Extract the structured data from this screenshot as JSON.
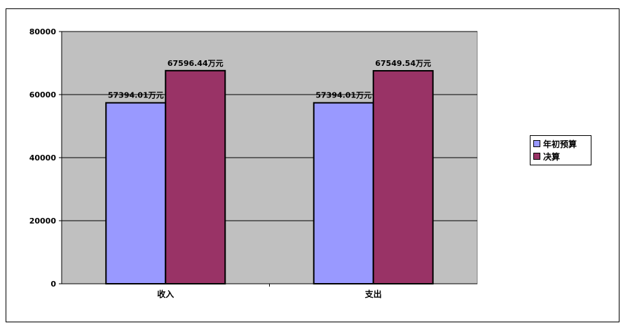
{
  "chart_data": {
    "type": "bar",
    "title": "",
    "xlabel": "",
    "ylabel": "",
    "categories": [
      "收入",
      "支出"
    ],
    "series": [
      {
        "name": "年初预算",
        "color": "#9999ff",
        "values": [
          57394.01,
          57394.01
        ],
        "labels": [
          "57394.01万元",
          "57394.01万元"
        ]
      },
      {
        "name": "决算",
        "color": "#993366",
        "values": [
          67596.44,
          67549.54
        ],
        "labels": [
          "67596.44万元",
          "67549.54万元"
        ]
      }
    ],
    "ylim": [
      0,
      80000
    ],
    "yticks": [
      "0",
      "20000",
      "40000",
      "60000",
      "80000"
    ],
    "grid": true,
    "plot_background": "#c0c0c0",
    "legend_position": "right"
  }
}
